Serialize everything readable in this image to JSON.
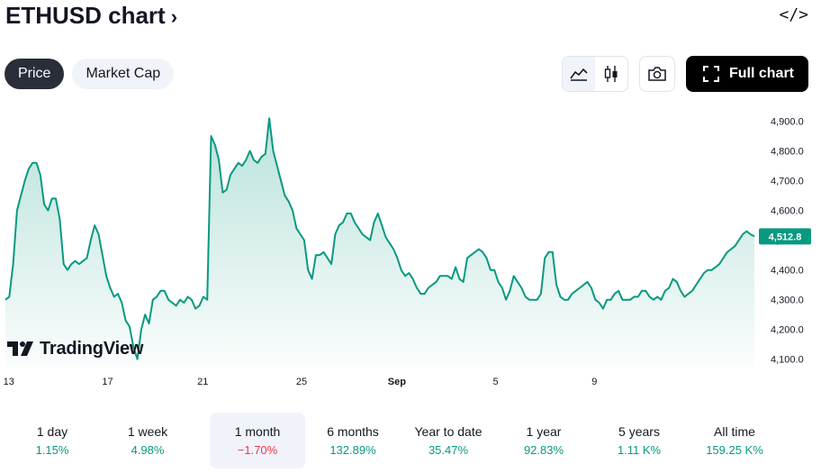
{
  "header": {
    "title": "ETHUSD chart",
    "title_chevron": "›",
    "embed_icon_text": "</>"
  },
  "tabs": [
    {
      "label": "Price",
      "active": true
    },
    {
      "label": "Market Cap",
      "active": false
    }
  ],
  "toolbar": {
    "full_chart_label": "Full chart",
    "chart_style_selected": "line"
  },
  "logo": {
    "text": "TradingView"
  },
  "chart_data": {
    "type": "area",
    "symbol": "ETHUSD",
    "color": "#089981",
    "last_price": 4512.8,
    "last_price_label": "4,512.8",
    "ylim": [
      4075,
      4950
    ],
    "y_ticks": [
      4100,
      4200,
      4300,
      4400,
      4500,
      4600,
      4700,
      4800,
      4900
    ],
    "y_tick_labels": [
      "4,100.0",
      "4,200.0",
      "4,300.0",
      "4,400.0",
      "4,500.0",
      "4,600.0",
      "4,700.0",
      "4,800.0",
      "4,900.0"
    ],
    "x_tick_labels": [
      "13",
      "17",
      "21",
      "25",
      "Sep",
      "5",
      "9"
    ],
    "x_tick_index": [
      4,
      33,
      61,
      90,
      118,
      147,
      176
    ],
    "x_range": [
      3,
      223
    ],
    "values": [
      4300,
      4310,
      4420,
      4600,
      4650,
      4700,
      4740,
      4760,
      4760,
      4720,
      4620,
      4600,
      4640,
      4640,
      4570,
      4420,
      4400,
      4420,
      4430,
      4420,
      4430,
      4440,
      4500,
      4550,
      4520,
      4450,
      4380,
      4340,
      4310,
      4320,
      4290,
      4230,
      4210,
      4140,
      4100,
      4200,
      4250,
      4220,
      4300,
      4310,
      4330,
      4330,
      4300,
      4290,
      4280,
      4300,
      4290,
      4310,
      4300,
      4270,
      4280,
      4310,
      4300,
      4850,
      4820,
      4770,
      4660,
      4670,
      4720,
      4740,
      4760,
      4750,
      4770,
      4800,
      4770,
      4760,
      4780,
      4790,
      4910,
      4800,
      4750,
      4700,
      4650,
      4630,
      4600,
      4540,
      4520,
      4500,
      4400,
      4370,
      4450,
      4450,
      4460,
      4440,
      4420,
      4520,
      4550,
      4560,
      4590,
      4590,
      4560,
      4540,
      4520,
      4510,
      4500,
      4560,
      4590,
      4550,
      4510,
      4490,
      4470,
      4440,
      4400,
      4380,
      4390,
      4370,
      4340,
      4320,
      4320,
      4340,
      4350,
      4360,
      4380,
      4380,
      4380,
      4370,
      4410,
      4370,
      4360,
      4440,
      4450,
      4460,
      4470,
      4460,
      4440,
      4400,
      4400,
      4360,
      4340,
      4300,
      4330,
      4380,
      4360,
      4340,
      4310,
      4300,
      4300,
      4300,
      4320,
      4440,
      4460,
      4460,
      4350,
      4310,
      4300,
      4300,
      4320,
      4330,
      4340,
      4350,
      4360,
      4340,
      4300,
      4290,
      4270,
      4300,
      4300,
      4320,
      4330,
      4300,
      4300,
      4300,
      4310,
      4310,
      4330,
      4330,
      4310,
      4300,
      4310,
      4300,
      4330,
      4340,
      4370,
      4360,
      4330,
      4310,
      4320,
      4330,
      4350,
      4370,
      4390,
      4400,
      4400,
      4410,
      4420,
      4440,
      4460,
      4470,
      4480,
      4500,
      4520,
      4530,
      4520,
      4512.8
    ],
    "grid": false,
    "legend": "none"
  },
  "periods": [
    {
      "label": "1 day",
      "change": "1.15%",
      "direction": "up",
      "selected": false
    },
    {
      "label": "1 week",
      "change": "4.98%",
      "direction": "up",
      "selected": false
    },
    {
      "label": "1 month",
      "change": "−1.70%",
      "direction": "down",
      "selected": true
    },
    {
      "label": "6 months",
      "change": "132.89%",
      "direction": "up",
      "selected": false
    },
    {
      "label": "Year to date",
      "change": "35.47%",
      "direction": "up",
      "selected": false
    },
    {
      "label": "1 year",
      "change": "92.83%",
      "direction": "up",
      "selected": false
    },
    {
      "label": "5 years",
      "change": "1.11 K%",
      "direction": "up",
      "selected": false
    },
    {
      "label": "All time",
      "change": "159.25 K%",
      "direction": "up",
      "selected": false
    }
  ]
}
